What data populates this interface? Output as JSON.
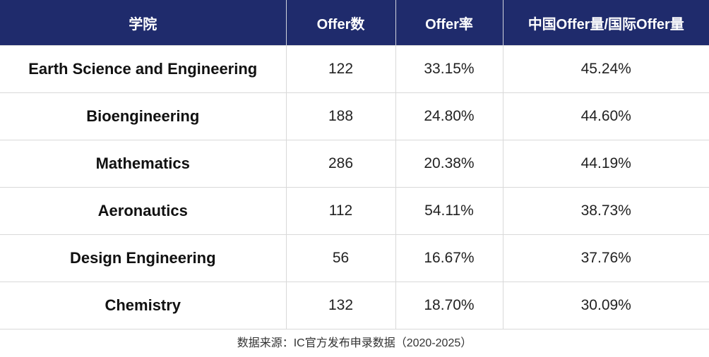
{
  "table": {
    "header": [
      "学院",
      "Offer数",
      "Offer率",
      "中国Offer量/国际Offer量"
    ],
    "rows": [
      [
        "Earth Science and Engineering",
        "122",
        "33.15%",
        "45.24%"
      ],
      [
        "Bioengineering",
        "188",
        "24.80%",
        "44.60%"
      ],
      [
        "Mathematics",
        "286",
        "20.38%",
        "44.19%"
      ],
      [
        "Aeronautics",
        "112",
        "54.11%",
        "38.73%"
      ],
      [
        "Design Engineering",
        "56",
        "16.67%",
        "37.76%"
      ],
      [
        "Chemistry",
        "132",
        "18.70%",
        "30.09%"
      ]
    ]
  },
  "footer": "数据来源：IC官方发布申录数据（2020-2025）"
}
